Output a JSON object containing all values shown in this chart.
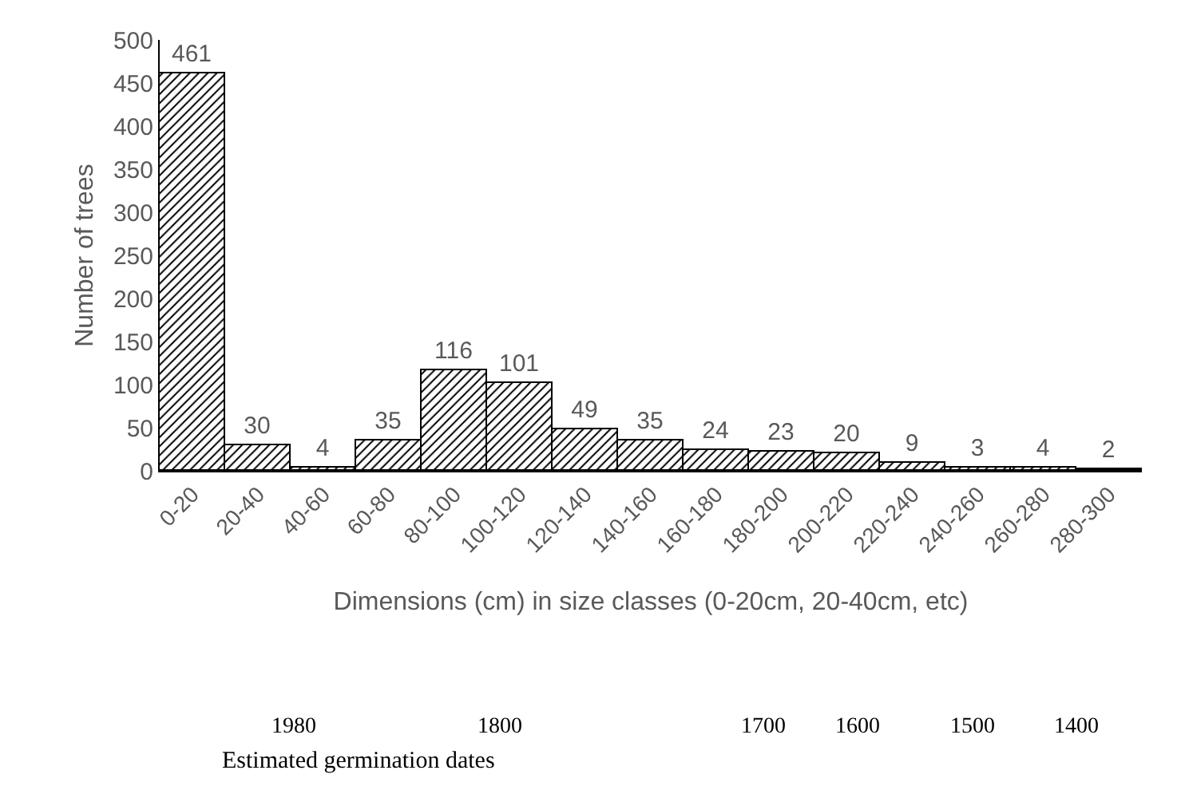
{
  "chart_data": {
    "type": "bar",
    "ylabel": "Number of trees",
    "xlabel": "Dimensions (cm) in size classes (0-20cm, 20-40cm, etc)",
    "categories": [
      "0-20",
      "20-40",
      "40-60",
      "60-80",
      "80-100",
      "100-120",
      "120-140",
      "140-160",
      "160-180",
      "180-200",
      "200-220",
      "220-240",
      "240-260",
      "260-280",
      "280-300"
    ],
    "values": [
      461,
      30,
      4,
      35,
      116,
      101,
      49,
      35,
      24,
      23,
      20,
      9,
      3,
      4,
      2
    ],
    "color": "#000000",
    "ylim": [
      0,
      500
    ],
    "yticks": [
      0,
      50,
      100,
      150,
      200,
      250,
      300,
      350,
      400,
      450,
      500
    ],
    "grid": false,
    "data_labels": true,
    "annotations": [
      "1980",
      "1800",
      "1700",
      "1600",
      "1500",
      "1400",
      "Estimated germination dates"
    ]
  }
}
